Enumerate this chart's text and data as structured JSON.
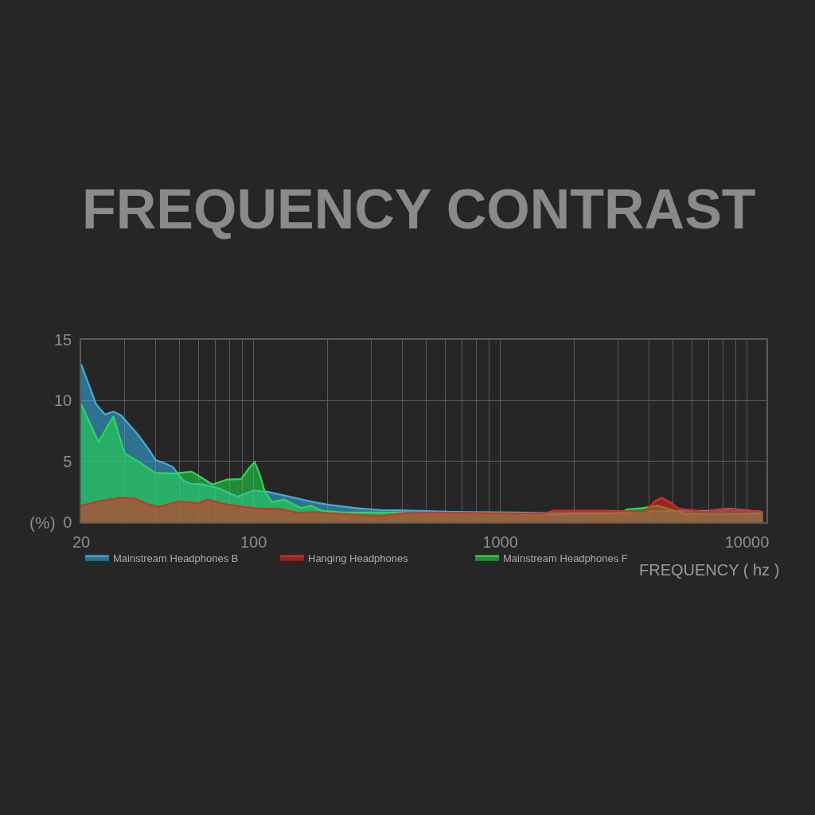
{
  "chart_data": {
    "type": "area",
    "title": "FREQUENCY CONTRAST",
    "xlabel": "FREQUENCY ( hz )",
    "ylabel": "(%)",
    "series": [
      {
        "name": "Mainstream Headphones B",
        "color": "#36b0e6",
        "x": [
          20,
          23,
          25,
          27,
          29,
          34,
          38,
          40,
          43,
          47,
          52,
          56,
          62,
          72,
          86,
          100,
          114,
          175,
          206,
          260,
          325,
          440,
          650,
          1150,
          1500,
          3100,
          3860,
          4150,
          7070,
          8600,
          10200,
          11600
        ],
        "values": [
          13.0,
          9.7,
          8.85,
          9.1,
          8.8,
          7.2,
          5.85,
          5.1,
          4.9,
          4.55,
          3.4,
          3.15,
          3.1,
          2.8,
          2.1,
          2.6,
          2.5,
          1.65,
          1.4,
          1.15,
          1.0,
          0.95,
          0.85,
          0.8,
          0.75,
          0.75,
          0.8,
          0.9,
          0.95,
          1.1,
          0.95,
          0.85
        ]
      },
      {
        "name": "Hanging Headphones",
        "color": "#e8281e",
        "x": [
          20,
          24,
          29,
          33,
          37,
          41,
          50,
          60,
          65,
          76,
          91,
          106,
          127,
          153,
          175,
          200,
          325,
          410,
          510,
          1500,
          1650,
          2700,
          3860,
          4250,
          4520,
          4920,
          5290,
          6740,
          8180,
          11600
        ],
        "values": [
          1.35,
          1.75,
          2.0,
          1.95,
          1.5,
          1.25,
          1.7,
          1.55,
          1.85,
          1.5,
          1.25,
          1.1,
          1.1,
          0.75,
          0.85,
          0.75,
          0.5,
          0.75,
          0.8,
          0.7,
          0.95,
          0.95,
          0.85,
          1.75,
          2.0,
          1.6,
          1.1,
          0.85,
          1.1,
          0.85
        ]
      },
      {
        "name": "Mainstream Headphones F",
        "color": "#22e048",
        "x": [
          20,
          23.5,
          27,
          30,
          34,
          40,
          48,
          56,
          60,
          68,
          78,
          89,
          96,
          101,
          106,
          111,
          119,
          133,
          156,
          171,
          188,
          230,
          410,
          1150,
          1300,
          1500,
          3100,
          3260,
          3770,
          4360,
          4800,
          5550,
          7070,
          11600
        ],
        "values": [
          9.7,
          6.6,
          8.7,
          5.65,
          5.0,
          4.05,
          4.0,
          4.15,
          3.8,
          3.1,
          3.5,
          3.55,
          4.45,
          4.95,
          3.9,
          2.5,
          1.65,
          1.85,
          1.15,
          1.35,
          0.95,
          0.8,
          0.8,
          0.75,
          0.62,
          0.62,
          0.75,
          1.05,
          1.15,
          1.35,
          1.1,
          0.7,
          0.65,
          0.7
        ]
      }
    ],
    "xlim": [
      20,
      12000
    ],
    "xticks": [
      20,
      {
        "value": 30,
        "label": null
      },
      {
        "value": 40,
        "label": null
      },
      {
        "value": 50,
        "label": null
      },
      {
        "value": 60,
        "label": null
      },
      {
        "value": 70,
        "label": null
      },
      {
        "value": 80,
        "label": null
      },
      {
        "value": 90,
        "label": null
      },
      100,
      {
        "value": 200,
        "label": null
      },
      {
        "value": 300,
        "label": null
      },
      {
        "value": 400,
        "label": null
      },
      {
        "value": 500,
        "label": null
      },
      {
        "value": 600,
        "label": null
      },
      {
        "value": 700,
        "label": null
      },
      {
        "value": 800,
        "label": null
      },
      {
        "value": 900,
        "label": null
      },
      1000,
      {
        "value": 2000,
        "label": null
      },
      {
        "value": 3000,
        "label": null
      },
      {
        "value": 4000,
        "label": null
      },
      {
        "value": 5000,
        "label": null
      },
      {
        "value": 6000,
        "label": null
      },
      {
        "value": 7000,
        "label": null
      },
      {
        "value": 8000,
        "label": null
      },
      {
        "value": 9000,
        "label": null
      },
      10000
    ],
    "ylim": [
      0,
      15
    ],
    "yticks": [
      0,
      5,
      10,
      15
    ],
    "log": "x",
    "grid": true,
    "legend": "bottom left"
  }
}
